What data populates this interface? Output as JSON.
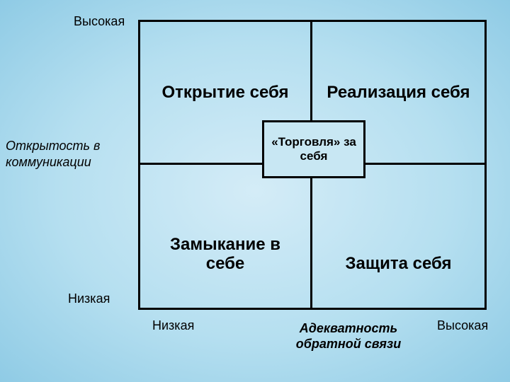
{
  "type": "quadrant-matrix",
  "background": {
    "gradient_inner": "#d4ecf7",
    "gradient_mid": "#b5dff0",
    "gradient_outer": "#8fcbe5"
  },
  "border_color": "#000000",
  "border_width": 3,
  "text_color": "#000000",
  "fonts": {
    "quadrant": {
      "size": 24,
      "weight": "bold"
    },
    "axis_title": {
      "size": 18,
      "style": "italic"
    },
    "axis_tick": {
      "size": 18
    },
    "center_box": {
      "size": 17,
      "weight": "bold"
    }
  },
  "y_axis": {
    "title": "Открытость в коммуникации",
    "high": "Высокая",
    "low": "Низкая"
  },
  "x_axis": {
    "title": "Адекватность обратной связи",
    "low": "Низкая",
    "high": "Высокая"
  },
  "quadrants": {
    "top_left": "Открытие себя",
    "top_right": "Реализация себя",
    "bottom_left": "Замыкание в себе",
    "bottom_right": "Защита себя"
  },
  "center_box": {
    "label": "«Торговля» за себя",
    "background": "#c8e7f3"
  }
}
